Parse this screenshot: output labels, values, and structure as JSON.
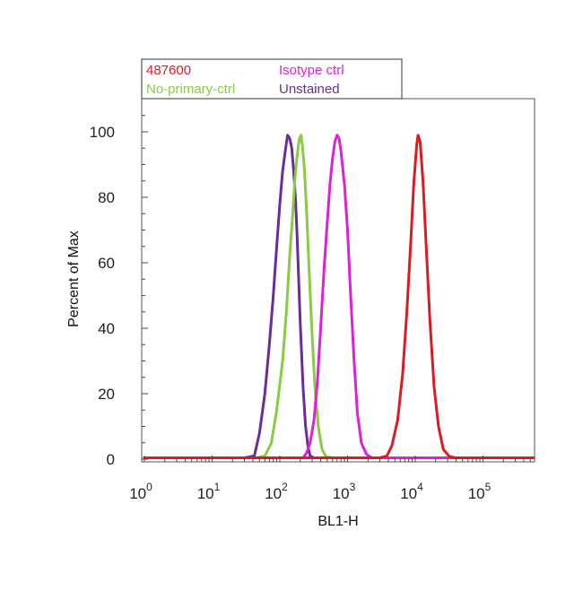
{
  "chart_data": {
    "type": "line",
    "title": "",
    "xlabel": "BL1-H",
    "ylabel": "Percent of Max",
    "x_scale": "log",
    "xlim": [
      1,
      600000
    ],
    "ylim": [
      0,
      110
    ],
    "x_ticks": [
      {
        "base": "10",
        "exp": "0",
        "value": 1
      },
      {
        "base": "10",
        "exp": "1",
        "value": 10
      },
      {
        "base": "10",
        "exp": "2",
        "value": 100
      },
      {
        "base": "10",
        "exp": "3",
        "value": 1000
      },
      {
        "base": "10",
        "exp": "4",
        "value": 10000
      },
      {
        "base": "10",
        "exp": "5",
        "value": 100000
      }
    ],
    "y_ticks": [
      {
        "label": "0",
        "value": 0
      },
      {
        "label": "20",
        "value": 20
      },
      {
        "label": "40",
        "value": 40
      },
      {
        "label": "60",
        "value": 60
      },
      {
        "label": "80",
        "value": 80
      },
      {
        "label": "100",
        "value": 100
      }
    ],
    "grid": false,
    "legend_position": "top-left, above plot",
    "series": [
      {
        "name": "Unstained",
        "color": "#6a2c9a",
        "points": [
          [
            1,
            0.4
          ],
          [
            30,
            0.4
          ],
          [
            42,
            1
          ],
          [
            50,
            8
          ],
          [
            60,
            20
          ],
          [
            70,
            35
          ],
          [
            80,
            50
          ],
          [
            90,
            65
          ],
          [
            100,
            78
          ],
          [
            110,
            88
          ],
          [
            120,
            94
          ],
          [
            130,
            99
          ],
          [
            140,
            98
          ],
          [
            150,
            95
          ],
          [
            160,
            88
          ],
          [
            170,
            80
          ],
          [
            180,
            68
          ],
          [
            190,
            55
          ],
          [
            200,
            42
          ],
          [
            220,
            22
          ],
          [
            240,
            10
          ],
          [
            260,
            4
          ],
          [
            280,
            1
          ],
          [
            320,
            0.4
          ],
          [
            600000,
            0.4
          ]
        ]
      },
      {
        "name": "No-primary-ctrl",
        "color": "#88cc44",
        "points": [
          [
            1,
            0.4
          ],
          [
            45,
            0.4
          ],
          [
            60,
            1
          ],
          [
            75,
            5
          ],
          [
            90,
            15
          ],
          [
            110,
            30
          ],
          [
            125,
            45
          ],
          [
            140,
            62
          ],
          [
            155,
            75
          ],
          [
            165,
            84
          ],
          [
            175,
            90
          ],
          [
            185,
            95
          ],
          [
            195,
            98
          ],
          [
            205,
            99
          ],
          [
            215,
            96
          ],
          [
            230,
            89
          ],
          [
            250,
            75
          ],
          [
            270,
            58
          ],
          [
            300,
            38
          ],
          [
            330,
            22
          ],
          [
            370,
            10
          ],
          [
            420,
            3
          ],
          [
            480,
            0.8
          ],
          [
            600,
            0.4
          ],
          [
            600000,
            0.4
          ]
        ]
      },
      {
        "name": "Isotype ctrl",
        "color": "#e020d8",
        "points": [
          [
            1,
            0.4
          ],
          [
            220,
            0.4
          ],
          [
            250,
            2
          ],
          [
            280,
            5
          ],
          [
            320,
            12
          ],
          [
            360,
            24
          ],
          [
            400,
            40
          ],
          [
            450,
            58
          ],
          [
            500,
            72
          ],
          [
            550,
            84
          ],
          [
            600,
            92
          ],
          [
            650,
            97
          ],
          [
            700,
            99
          ],
          [
            750,
            98
          ],
          [
            800,
            94
          ],
          [
            900,
            84
          ],
          [
            1000,
            70
          ],
          [
            1100,
            52
          ],
          [
            1250,
            30
          ],
          [
            1400,
            14
          ],
          [
            1600,
            5
          ],
          [
            1900,
            1.5
          ],
          [
            2300,
            0.4
          ],
          [
            600000,
            0.4
          ]
        ]
      },
      {
        "name": "487600",
        "color": "#dd1a22",
        "points": [
          [
            1,
            0.4
          ],
          [
            3000,
            0.4
          ],
          [
            3800,
            1
          ],
          [
            4500,
            4
          ],
          [
            5500,
            12
          ],
          [
            6500,
            26
          ],
          [
            7500,
            45
          ],
          [
            8500,
            65
          ],
          [
            9500,
            84
          ],
          [
            10500,
            96
          ],
          [
            11000,
            99
          ],
          [
            11800,
            97
          ],
          [
            13000,
            85
          ],
          [
            14500,
            65
          ],
          [
            16500,
            42
          ],
          [
            19000,
            22
          ],
          [
            22000,
            10
          ],
          [
            26000,
            3
          ],
          [
            32000,
            0.8
          ],
          [
            40000,
            0.4
          ],
          [
            600000,
            0.4
          ]
        ]
      }
    ]
  }
}
